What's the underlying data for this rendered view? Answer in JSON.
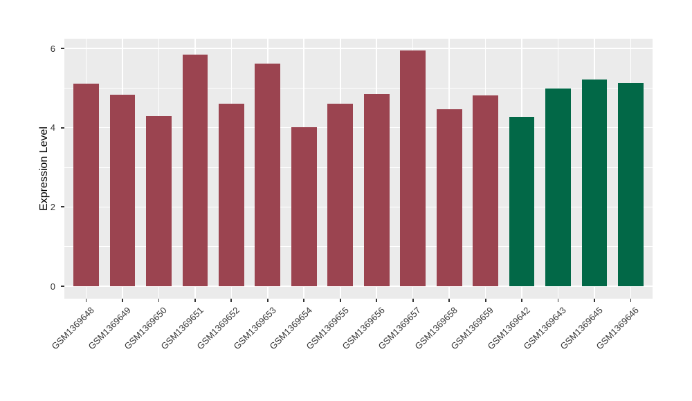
{
  "chart_data": {
    "type": "bar",
    "title": "",
    "xlabel": "",
    "ylabel": "Expression Level",
    "ylim": [
      -0.3,
      6.25
    ],
    "yticks": [
      0,
      2,
      4,
      6
    ],
    "yticks_minor": [
      1,
      3,
      5
    ],
    "grid": "on",
    "legend": "none",
    "plot_bg": "#EBEBEB",
    "grid_color": "#FFFFFF",
    "axis_text_color": "#333333",
    "axis_title_color": "#000000",
    "tick_mark_color": "#333333",
    "bar_group_colors": {
      "group_a": "#9B4450",
      "group_b": "#026847"
    },
    "categories": [
      "GSM1369648",
      "GSM1369649",
      "GSM1369650",
      "GSM1369651",
      "GSM1369652",
      "GSM1369653",
      "GSM1369654",
      "GSM1369655",
      "GSM1369656",
      "GSM1369657",
      "GSM1369658",
      "GSM1369659",
      "GSM1369642",
      "GSM1369643",
      "GSM1369645",
      "GSM1369646"
    ],
    "values": [
      5.11,
      4.84,
      4.29,
      5.84,
      4.61,
      5.62,
      4.02,
      4.61,
      4.85,
      5.95,
      4.47,
      4.82,
      4.28,
      4.99,
      5.22,
      5.13
    ],
    "bar_colors": [
      "#9B4450",
      "#9B4450",
      "#9B4450",
      "#9B4450",
      "#9B4450",
      "#9B4450",
      "#9B4450",
      "#9B4450",
      "#9B4450",
      "#9B4450",
      "#9B4450",
      "#9B4450",
      "#026847",
      "#026847",
      "#026847",
      "#026847"
    ]
  }
}
